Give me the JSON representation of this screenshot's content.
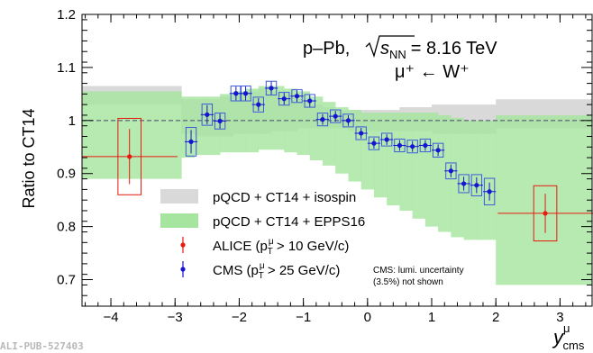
{
  "chart_data": {
    "type": "scatter",
    "ylabel": "Ratio to CT14",
    "xlabel": "y",
    "xlabel_sup": "μ",
    "xlabel_sub": "cms",
    "xlim": [
      -4.45,
      3.5
    ],
    "ylim": [
      0.65,
      1.2
    ],
    "xticks": [
      -4,
      -3,
      -2,
      -1,
      0,
      1,
      2,
      3
    ],
    "yticks": [
      0.7,
      0.8,
      0.9,
      1,
      1.1,
      1.2
    ],
    "reference_line_y": 1,
    "grid": false,
    "legend_position": "bottom-left",
    "annotation": {
      "system": "p–Pb,",
      "energy_symbol": "s",
      "energy_sub": "NN",
      "energy_value": "= 8.16 TeV",
      "process": "μ⁺ ← W⁺"
    },
    "note": [
      "CMS: lumi. uncertainty",
      "(3.5%) not shown"
    ],
    "ref_id": "ALI-PUB-527403",
    "legend": [
      {
        "key": "isospin",
        "text": "pQCD + CT14 + isospin"
      },
      {
        "key": "epps",
        "text": "pQCD + CT14 + EPPS16"
      },
      {
        "key": "alice",
        "text": "ALICE (p",
        "sup": "μ",
        "sub": "T",
        "rest": " > 10 GeV/c)"
      },
      {
        "key": "cms",
        "text": "CMS (p",
        "sup": "μ",
        "sub": "T",
        "rest": " > 25 GeV/c)"
      }
    ],
    "colors": {
      "isospin": "#d9d9d9",
      "epps": "#a6e5a0",
      "alice": "#e8190f",
      "cms": "#1414d2",
      "cms_box": "#3d5bd9",
      "ref_line": "#444466"
    },
    "isospin_band": [
      {
        "x0": -4.45,
        "x1": -2.9,
        "lo": 1.03,
        "hi": 1.065
      },
      {
        "x0": -2.9,
        "x1": -2.7,
        "lo": 0.975,
        "hi": 1.04
      },
      {
        "x0": -2.7,
        "x1": -2.5,
        "lo": 0.97,
        "hi": 1.04
      },
      {
        "x0": -2.5,
        "x1": -2.3,
        "lo": 0.97,
        "hi": 1.04
      },
      {
        "x0": -2.3,
        "x1": -2.1,
        "lo": 0.97,
        "hi": 1.045
      },
      {
        "x0": -2.1,
        "x1": -1.9,
        "lo": 0.975,
        "hi": 1.05
      },
      {
        "x0": -1.9,
        "x1": -1.7,
        "lo": 0.975,
        "hi": 1.055
      },
      {
        "x0": -1.7,
        "x1": -1.5,
        "lo": 0.975,
        "hi": 1.06
      },
      {
        "x0": -1.5,
        "x1": -1.3,
        "lo": 0.98,
        "hi": 1.055
      },
      {
        "x0": -1.3,
        "x1": -1.1,
        "lo": 0.98,
        "hi": 1.05
      },
      {
        "x0": -1.1,
        "x1": -0.9,
        "lo": 0.985,
        "hi": 1.04
      },
      {
        "x0": -0.9,
        "x1": -0.7,
        "lo": 0.985,
        "hi": 1.03
      },
      {
        "x0": -0.7,
        "x1": -0.5,
        "lo": 0.985,
        "hi": 1.025
      },
      {
        "x0": -0.5,
        "x1": -0.3,
        "lo": 0.985,
        "hi": 1.02
      },
      {
        "x0": -0.3,
        "x1": 0.0,
        "lo": 0.98,
        "hi": 1.02
      },
      {
        "x0": 0.0,
        "x1": 0.5,
        "lo": 0.98,
        "hi": 1.02
      },
      {
        "x0": 0.5,
        "x1": 1.0,
        "lo": 0.98,
        "hi": 1.025
      },
      {
        "x0": 1.0,
        "x1": 1.5,
        "lo": 0.975,
        "hi": 1.03
      },
      {
        "x0": 1.5,
        "x1": 2.0,
        "lo": 0.975,
        "hi": 1.03
      },
      {
        "x0": 2.0,
        "x1": 3.5,
        "lo": 0.985,
        "hi": 1.04
      }
    ],
    "epps_band": [
      {
        "x0": -4.45,
        "x1": -2.9,
        "lo": 0.89,
        "hi": 1.055
      },
      {
        "x0": -2.9,
        "x1": -2.7,
        "lo": 0.93,
        "hi": 1.045
      },
      {
        "x0": -2.7,
        "x1": -2.5,
        "lo": 0.935,
        "hi": 1.045
      },
      {
        "x0": -2.5,
        "x1": -2.3,
        "lo": 0.935,
        "hi": 1.045
      },
      {
        "x0": -2.3,
        "x1": -2.1,
        "lo": 0.94,
        "hi": 1.05
      },
      {
        "x0": -2.1,
        "x1": -1.9,
        "lo": 0.94,
        "hi": 1.055
      },
      {
        "x0": -1.9,
        "x1": -1.7,
        "lo": 0.94,
        "hi": 1.06
      },
      {
        "x0": -1.7,
        "x1": -1.5,
        "lo": 0.945,
        "hi": 1.065
      },
      {
        "x0": -1.5,
        "x1": -1.3,
        "lo": 0.945,
        "hi": 1.065
      },
      {
        "x0": -1.3,
        "x1": -1.1,
        "lo": 0.94,
        "hi": 1.06
      },
      {
        "x0": -1.1,
        "x1": -0.9,
        "lo": 0.935,
        "hi": 1.055
      },
      {
        "x0": -0.9,
        "x1": -0.7,
        "lo": 0.925,
        "hi": 1.045
      },
      {
        "x0": -0.7,
        "x1": -0.5,
        "lo": 0.915,
        "hi": 1.035
      },
      {
        "x0": -0.5,
        "x1": -0.3,
        "lo": 0.9,
        "hi": 1.025
      },
      {
        "x0": -0.3,
        "x1": -0.1,
        "lo": 0.885,
        "hi": 1.02
      },
      {
        "x0": -0.1,
        "x1": 0.1,
        "lo": 0.87,
        "hi": 1.015
      },
      {
        "x0": 0.1,
        "x1": 0.3,
        "lo": 0.855,
        "hi": 1.015
      },
      {
        "x0": 0.3,
        "x1": 0.5,
        "lo": 0.84,
        "hi": 1.015
      },
      {
        "x0": 0.5,
        "x1": 0.7,
        "lo": 0.83,
        "hi": 1.015
      },
      {
        "x0": 0.7,
        "x1": 0.9,
        "lo": 0.815,
        "hi": 1.015
      },
      {
        "x0": 0.9,
        "x1": 1.1,
        "lo": 0.8,
        "hi": 1.015
      },
      {
        "x0": 1.1,
        "x1": 1.3,
        "lo": 0.79,
        "hi": 1.01
      },
      {
        "x0": 1.3,
        "x1": 1.5,
        "lo": 0.78,
        "hi": 1.005
      },
      {
        "x0": 1.5,
        "x1": 1.7,
        "lo": 0.775,
        "hi": 1.0
      },
      {
        "x0": 1.7,
        "x1": 2.0,
        "lo": 0.775,
        "hi": 1.0
      },
      {
        "x0": 2.0,
        "x1": 3.5,
        "lo": 0.69,
        "hi": 1.01
      }
    ],
    "series": [
      {
        "name": "ALICE",
        "key": "alice",
        "points": [
          {
            "x": -3.71,
            "x_lo": -4.45,
            "x_hi": -2.96,
            "y": 0.932,
            "err": 0.052,
            "syst_dx": 0.18,
            "syst": 0.072
          },
          {
            "x": 2.77,
            "x_lo": 2.03,
            "x_hi": 3.53,
            "y": 0.825,
            "err": 0.037,
            "syst_dx": 0.18,
            "syst": 0.052
          }
        ]
      },
      {
        "name": "CMS",
        "key": "cms",
        "points": [
          {
            "x": -2.75,
            "y": 0.96,
            "err": 0.022,
            "syst": 0.027
          },
          {
            "x": -2.5,
            "y": 1.011,
            "err": 0.018,
            "syst": 0.02
          },
          {
            "x": -2.3,
            "y": 0.999,
            "err": 0.014,
            "syst": 0.015
          },
          {
            "x": -2.05,
            "y": 1.051,
            "err": 0.013,
            "syst": 0.014
          },
          {
            "x": -1.9,
            "y": 1.051,
            "err": 0.013,
            "syst": 0.014
          },
          {
            "x": -1.7,
            "y": 1.03,
            "err": 0.012,
            "syst": 0.014
          },
          {
            "x": -1.5,
            "y": 1.061,
            "err": 0.012,
            "syst": 0.013
          },
          {
            "x": -1.3,
            "y": 1.041,
            "err": 0.011,
            "syst": 0.012
          },
          {
            "x": -1.1,
            "y": 1.046,
            "err": 0.011,
            "syst": 0.012
          },
          {
            "x": -0.9,
            "y": 1.037,
            "err": 0.011,
            "syst": 0.012
          },
          {
            "x": -0.7,
            "y": 1.002,
            "err": 0.01,
            "syst": 0.012
          },
          {
            "x": -0.5,
            "y": 1.008,
            "err": 0.01,
            "syst": 0.012
          },
          {
            "x": -0.3,
            "y": 1.0,
            "err": 0.01,
            "syst": 0.012
          },
          {
            "x": -0.1,
            "y": 0.976,
            "err": 0.01,
            "syst": 0.012
          },
          {
            "x": 0.1,
            "y": 0.957,
            "err": 0.01,
            "syst": 0.012
          },
          {
            "x": 0.3,
            "y": 0.964,
            "err": 0.01,
            "syst": 0.012
          },
          {
            "x": 0.5,
            "y": 0.953,
            "err": 0.01,
            "syst": 0.012
          },
          {
            "x": 0.7,
            "y": 0.951,
            "err": 0.01,
            "syst": 0.012
          },
          {
            "x": 0.9,
            "y": 0.953,
            "err": 0.01,
            "syst": 0.012
          },
          {
            "x": 1.1,
            "y": 0.944,
            "err": 0.011,
            "syst": 0.013
          },
          {
            "x": 1.3,
            "y": 0.905,
            "err": 0.012,
            "syst": 0.015
          },
          {
            "x": 1.5,
            "y": 0.881,
            "err": 0.013,
            "syst": 0.017
          },
          {
            "x": 1.7,
            "y": 0.878,
            "err": 0.015,
            "syst": 0.02
          },
          {
            "x": 1.9,
            "y": 0.866,
            "err": 0.017,
            "syst": 0.025
          }
        ]
      }
    ]
  }
}
